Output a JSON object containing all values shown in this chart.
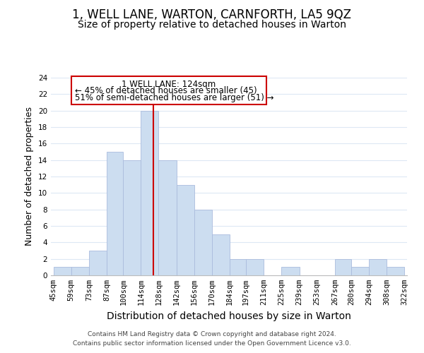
{
  "title": "1, WELL LANE, WARTON, CARNFORTH, LA5 9QZ",
  "subtitle": "Size of property relative to detached houses in Warton",
  "xlabel": "Distribution of detached houses by size in Warton",
  "ylabel": "Number of detached properties",
  "bar_left_edges": [
    45,
    59,
    73,
    87,
    100,
    114,
    128,
    142,
    156,
    170,
    184,
    197,
    211,
    225,
    239,
    253,
    267,
    280,
    294,
    308
  ],
  "bar_heights": [
    1,
    1,
    3,
    15,
    14,
    20,
    14,
    11,
    8,
    5,
    2,
    2,
    0,
    1,
    0,
    0,
    2,
    1,
    2,
    1
  ],
  "bar_widths": [
    14,
    14,
    14,
    13,
    14,
    14,
    14,
    14,
    14,
    14,
    13,
    14,
    14,
    14,
    14,
    14,
    13,
    14,
    14,
    14
  ],
  "tick_labels": [
    "45sqm",
    "59sqm",
    "73sqm",
    "87sqm",
    "100sqm",
    "114sqm",
    "128sqm",
    "142sqm",
    "156sqm",
    "170sqm",
    "184sqm",
    "197sqm",
    "211sqm",
    "225sqm",
    "239sqm",
    "253sqm",
    "267sqm",
    "280sqm",
    "294sqm",
    "308sqm",
    "322sqm"
  ],
  "tick_positions": [
    45,
    59,
    73,
    87,
    100,
    114,
    128,
    142,
    156,
    170,
    184,
    197,
    211,
    225,
    239,
    253,
    267,
    280,
    294,
    308,
    322
  ],
  "bar_color": "#ccddf0",
  "bar_edge_color": "#aabbdd",
  "vline_x": 124,
  "vline_color": "#cc0000",
  "ylim": [
    0,
    24
  ],
  "yticks": [
    0,
    2,
    4,
    6,
    8,
    10,
    12,
    14,
    16,
    18,
    20,
    22,
    24
  ],
  "annotation_title": "1 WELL LANE: 124sqm",
  "annotation_line1": "← 45% of detached houses are smaller (45)",
  "annotation_line2": "51% of semi-detached houses are larger (51) →",
  "annotation_box_color": "#ffffff",
  "annotation_border_color": "#cc0000",
  "footer_line1": "Contains HM Land Registry data © Crown copyright and database right 2024.",
  "footer_line2": "Contains public sector information licensed under the Open Government Licence v3.0.",
  "background_color": "#ffffff",
  "grid_color": "#dde8f4",
  "title_fontsize": 12,
  "subtitle_fontsize": 10,
  "xlabel_fontsize": 10,
  "ylabel_fontsize": 9,
  "tick_fontsize": 7.5,
  "footer_fontsize": 6.5,
  "annotation_fontsize": 8.5
}
